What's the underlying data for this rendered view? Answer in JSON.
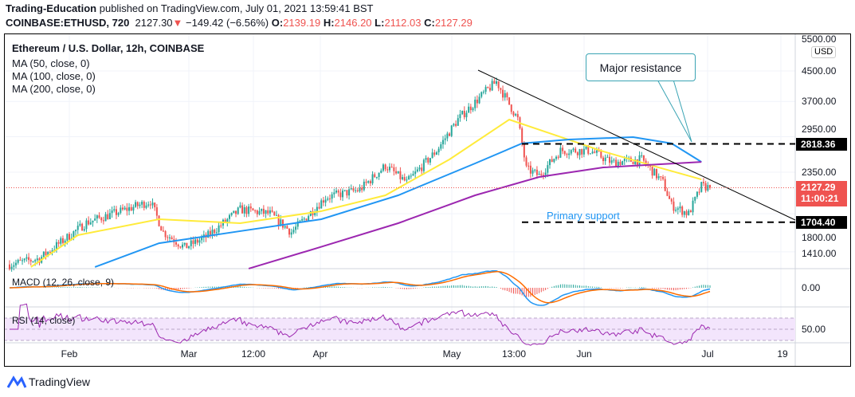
{
  "header": {
    "author": "Trading-Education",
    "published": " published on TradingView.com, July 01, 2021 13:59:41 BST",
    "symbol": "COINBASE:ETHUSD, 720",
    "last": "2127.30",
    "change": "−149.42 (−6.56%)",
    "o_label": "O:",
    "o": "2139.19",
    "h_label": "H:",
    "h": "2146.20",
    "l_label": "L:",
    "l": "2112.03",
    "c_label": "C:",
    "c": "2127.29"
  },
  "legend": {
    "title": "Ethereum / U.S. Dollar, 12h, COINBASE",
    "ma50": "MA (50, close, 0)",
    "ma100": "MA (100, close, 0)",
    "ma200": "MA (200, close, 0)",
    "macd": "MACD (12, 26, close, 9)",
    "rsi": "RSI (14, close)"
  },
  "price_axis": {
    "currency": "USD",
    "labels": [
      "5500.00",
      "4500.00",
      "3700.00",
      "2950.00",
      "2350.00",
      "1800.00",
      "1410.00"
    ],
    "macd_label": "0.00",
    "rsi_label": "50.00"
  },
  "tags": {
    "resistance": "2818.36",
    "current": "2127.29",
    "countdown": "11:00:21",
    "support": "1704.40"
  },
  "time_axis": [
    "Feb",
    "Mar",
    "12:00",
    "Apr",
    "May",
    "13:00",
    "Jun",
    "Jul",
    "19"
  ],
  "annotations": {
    "callout": "Major resistance",
    "support_text": "Primary support"
  },
  "footer": {
    "brand": "TradingView"
  },
  "colors": {
    "up": "#26a69a",
    "down": "#ef5350",
    "ma50": "#ffeb3b",
    "ma100": "#2196f3",
    "ma200": "#9c27b0"
  },
  "chart_data": {
    "type": "candlestick",
    "interval": "12h",
    "scale": "log",
    "closes": [
      [
        "2021-01-18",
        1300
      ],
      [
        "2021-01-25",
        1350
      ],
      [
        "2021-02-05",
        1700
      ],
      [
        "2021-02-10",
        1780
      ],
      [
        "2021-02-20",
        1950
      ],
      [
        "2021-02-23",
        1600
      ],
      [
        "2021-02-28",
        1450
      ],
      [
        "2021-03-05",
        1550
      ],
      [
        "2021-03-13",
        1850
      ],
      [
        "2021-03-20",
        1800
      ],
      [
        "2021-03-25",
        1600
      ],
      [
        "2021-04-02",
        2000
      ],
      [
        "2021-04-10",
        2100
      ],
      [
        "2021-04-16",
        2450
      ],
      [
        "2021-04-21",
        2200
      ],
      [
        "2021-04-28",
        2700
      ],
      [
        "2021-05-03",
        3300
      ],
      [
        "2021-05-10",
        4000
      ],
      [
        "2021-05-12",
        4200
      ],
      [
        "2021-05-17",
        3300
      ],
      [
        "2021-05-19",
        2400
      ],
      [
        "2021-05-22",
        2300
      ],
      [
        "2021-05-27",
        2700
      ],
      [
        "2021-06-03",
        2700
      ],
      [
        "2021-06-08",
        2500
      ],
      [
        "2021-06-15",
        2550
      ],
      [
        "2021-06-20",
        2200
      ],
      [
        "2021-06-22",
        1900
      ],
      [
        "2021-06-26",
        1800
      ],
      [
        "2021-06-29",
        2150
      ],
      [
        "2021-07-01",
        2127
      ]
    ],
    "ma50": [
      [
        "2021-01-23",
        1279
      ],
      [
        "2021-02-03",
        1569
      ],
      [
        "2021-02-22",
        1738
      ],
      [
        "2021-03-13",
        1694
      ],
      [
        "2021-04-01",
        1830
      ],
      [
        "2021-04-16",
        2026
      ],
      [
        "2021-05-01",
        2551
      ],
      [
        "2021-05-15",
        3294
      ],
      [
        "2021-05-26",
        2974
      ],
      [
        "2021-06-06",
        2685
      ],
      [
        "2021-06-19",
        2423
      ],
      [
        "2021-06-29",
        2244
      ]
    ],
    "ma100": [
      [
        "2021-02-07",
        1279
      ],
      [
        "2021-02-22",
        1490
      ],
      [
        "2021-03-13",
        1610
      ],
      [
        "2021-04-01",
        1738
      ],
      [
        "2021-04-19",
        2026
      ],
      [
        "2021-05-07",
        2486
      ],
      [
        "2021-05-18",
        2827
      ],
      [
        "2021-05-29",
        2899
      ],
      [
        "2021-06-13",
        2943
      ],
      [
        "2021-06-22",
        2827
      ],
      [
        "2021-06-29",
        2510
      ]
    ],
    "ma200": [
      [
        "2021-03-15",
        1266
      ],
      [
        "2021-04-01",
        1456
      ],
      [
        "2021-04-19",
        1694
      ],
      [
        "2021-05-07",
        2026
      ],
      [
        "2021-05-22",
        2279
      ],
      [
        "2021-06-06",
        2423
      ],
      [
        "2021-06-29",
        2510
      ]
    ],
    "levels": {
      "resistance": 2818.36,
      "support": 1704.4
    }
  }
}
